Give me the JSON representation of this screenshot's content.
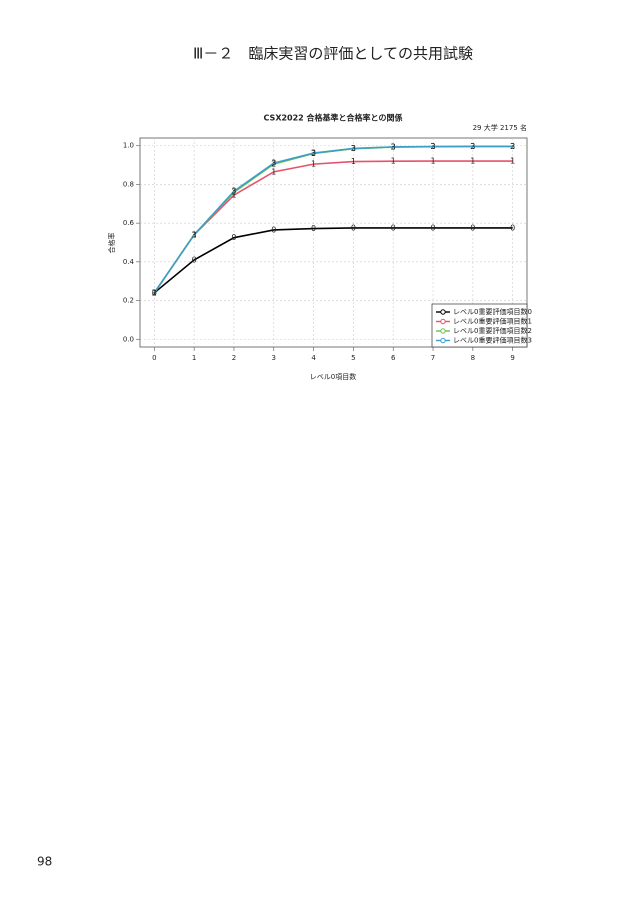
{
  "header": {
    "title": "Ⅲ－２　臨床実習の評価としての共用試験"
  },
  "page_number": "98",
  "chart_data": {
    "type": "line",
    "title": "CSX2022 合格基準と合格率との関係",
    "subtitle": "29 大学 2175 名",
    "x_label": "レベル0項目数",
    "y_label": "合格率",
    "x": [
      0,
      1,
      2,
      3,
      4,
      5,
      6,
      7,
      8,
      9
    ],
    "xlim": [
      -0.36,
      9.36
    ],
    "xticks": [
      0,
      1,
      2,
      3,
      4,
      5,
      6,
      7,
      8,
      9
    ],
    "ylim": [
      -0.04,
      1.04
    ],
    "yticks": [
      {
        "value": 0,
        "label": "0.0"
      },
      0.2,
      0.4,
      0.6,
      0.8,
      {
        "value": 1,
        "label": "1.0"
      }
    ],
    "grid": true,
    "legend": "bottom-right",
    "series": [
      {
        "name": "レベル0重要評価項目数0",
        "color": "#000000",
        "marker": "0",
        "values": [
          0.24,
          0.41,
          0.525,
          0.565,
          0.572,
          0.575,
          0.575,
          0.575,
          0.575,
          0.575
        ]
      },
      {
        "name": "レベル0重要評価項目数1",
        "color": "#e8516a",
        "marker": "1",
        "values": [
          0.24,
          0.54,
          0.745,
          0.865,
          0.905,
          0.918,
          0.92,
          0.921,
          0.921,
          0.921
        ]
      },
      {
        "name": "レベル0重要評価項目数2",
        "color": "#6cc04a",
        "marker": "2",
        "values": [
          0.24,
          0.54,
          0.76,
          0.905,
          0.96,
          0.985,
          0.993,
          0.995,
          0.996,
          0.996
        ]
      },
      {
        "name": "レベル0重要評価項目数3",
        "color": "#3aa0c8",
        "marker": "3",
        "values": [
          0.24,
          0.54,
          0.765,
          0.91,
          0.962,
          0.986,
          0.994,
          0.996,
          0.997,
          0.997
        ]
      }
    ]
  }
}
